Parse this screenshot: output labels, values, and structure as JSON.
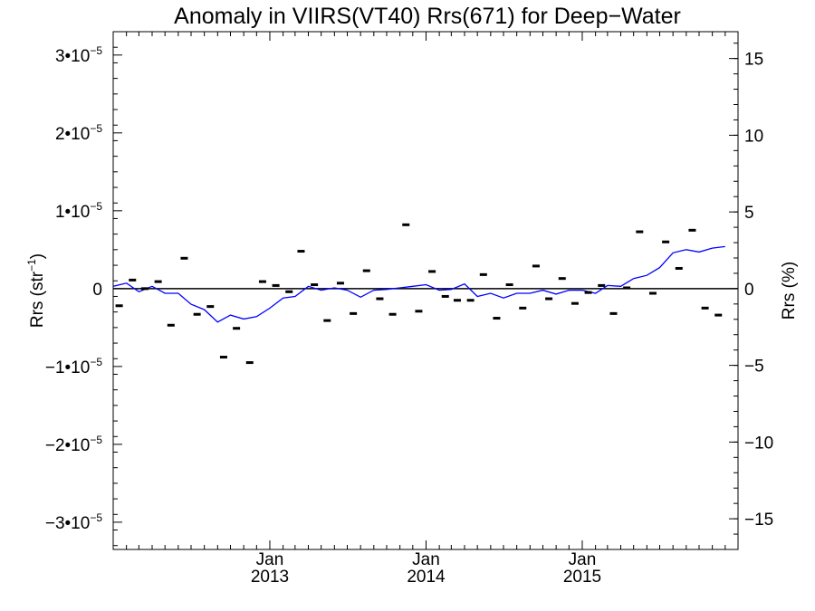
{
  "chart_data": {
    "type": "line",
    "title": "Anomaly in VIIRS(VT40) Rrs(671) for Deep−Water",
    "ylabel": "Rrs (str",
    "ylabel_sup": "−1",
    "ylabel_end": ")",
    "y2label": "Rrs (%)",
    "ylim": [
      -3.35e-05,
      3.3e-05
    ],
    "y2lim": [
      -17.0,
      16.75
    ],
    "y2_scale_per_unit": 5.88e-06,
    "yticks": [
      {
        "value": 3e-05,
        "mantissa": "3•10",
        "exp": "−5"
      },
      {
        "value": 2e-05,
        "mantissa": "2•10",
        "exp": "−5"
      },
      {
        "value": 1e-05,
        "mantissa": "1•10",
        "exp": "−5"
      },
      {
        "value": 0,
        "mantissa": "0",
        "exp": ""
      },
      {
        "value": -1e-05,
        "mantissa": "−1•10",
        "exp": "−5"
      },
      {
        "value": -2e-05,
        "mantissa": "−2•10",
        "exp": "−5"
      },
      {
        "value": -3e-05,
        "mantissa": "−3•10",
        "exp": "−5"
      }
    ],
    "y2ticks": [
      {
        "value": 15,
        "label": "15"
      },
      {
        "value": 10,
        "label": "10"
      },
      {
        "value": 5,
        "label": "5"
      },
      {
        "value": 0,
        "label": "0"
      },
      {
        "value": -5,
        "label": "−5"
      },
      {
        "value": -10,
        "label": "−10"
      },
      {
        "value": -15,
        "label": "−15"
      }
    ],
    "xlim": [
      "2012-01-01",
      "2015-12-31"
    ],
    "xticks": [
      {
        "date": "2013-01-01",
        "month": "Jan",
        "year": "2013"
      },
      {
        "date": "2014-01-01",
        "month": "Jan",
        "year": "2014"
      },
      {
        "date": "2015-01-01",
        "month": "Jan",
        "year": "2015"
      }
    ],
    "zero_line": true,
    "series": [
      {
        "style": "line",
        "color": "#0000ff",
        "x": [
          "2012-01-01",
          "2012-02-01",
          "2012-03-01",
          "2012-04-01",
          "2012-05-01",
          "2012-06-01",
          "2012-07-01",
          "2012-08-01",
          "2012-09-01",
          "2012-10-01",
          "2012-11-01",
          "2012-12-01",
          "2013-01-01",
          "2013-02-01",
          "2013-03-01",
          "2013-04-01",
          "2013-05-01",
          "2013-06-01",
          "2013-07-01",
          "2013-08-01",
          "2013-09-01",
          "2013-10-01",
          "2013-11-01",
          "2013-12-01",
          "2014-01-01",
          "2014-02-01",
          "2014-03-01",
          "2014-04-01",
          "2014-05-01",
          "2014-06-01",
          "2014-07-01",
          "2014-08-01",
          "2014-09-01",
          "2014-10-01",
          "2014-11-01",
          "2014-12-01",
          "2015-01-01",
          "2015-02-01",
          "2015-03-01",
          "2015-04-01",
          "2015-05-01",
          "2015-06-01",
          "2015-07-01",
          "2015-08-01",
          "2015-09-01",
          "2015-10-01",
          "2015-11-01",
          "2015-12-01"
        ],
        "y": [
          3e-07,
          7e-07,
          -4e-07,
          3e-07,
          -6e-07,
          -6e-07,
          -2e-06,
          -2.7e-06,
          -4.3e-06,
          -3.4e-06,
          -3.9e-06,
          -3.6e-06,
          -2.5e-06,
          -1.2e-06,
          -1e-06,
          3e-07,
          -2e-07,
          1e-07,
          -2e-07,
          -1.1e-06,
          -2e-07,
          -1e-07,
          1e-07,
          3e-07,
          5e-07,
          -2e-07,
          -1e-07,
          6e-07,
          -1e-06,
          -6e-07,
          -1.2e-06,
          -6e-07,
          -6e-07,
          -2e-07,
          -7e-07,
          -2e-07,
          -2e-07,
          -6e-07,
          4e-07,
          3e-07,
          1.3e-06,
          1.7e-06,
          2.7e-06,
          4.6e-06,
          5e-06,
          4.7e-06,
          5.2e-06,
          5.4e-06
        ]
      },
      {
        "style": "marker",
        "color": "#000000",
        "x": [
          "2012-01-15",
          "2012-02-15",
          "2012-03-15",
          "2012-04-15",
          "2012-05-15",
          "2012-06-15",
          "2012-07-15",
          "2012-08-15",
          "2012-09-15",
          "2012-10-15",
          "2012-11-15",
          "2012-12-15",
          "2013-01-15",
          "2013-02-15",
          "2013-03-15",
          "2013-04-15",
          "2013-05-15",
          "2013-06-15",
          "2013-07-15",
          "2013-08-15",
          "2013-09-15",
          "2013-10-15",
          "2013-11-15",
          "2013-12-15",
          "2014-01-15",
          "2014-02-15",
          "2014-03-15",
          "2014-04-15",
          "2014-05-15",
          "2014-06-15",
          "2014-07-15",
          "2014-08-15",
          "2014-09-15",
          "2014-10-15",
          "2014-11-15",
          "2014-12-15",
          "2015-01-15",
          "2015-02-15",
          "2015-03-15",
          "2015-04-15",
          "2015-05-15",
          "2015-06-15",
          "2015-07-15",
          "2015-08-15",
          "2015-09-15",
          "2015-10-15",
          "2015-11-15"
        ],
        "y": [
          -2.2e-06,
          1.1e-06,
          0.0,
          9e-07,
          -4.7e-06,
          3.9e-06,
          -3.3e-06,
          -2.3e-06,
          -8.8e-06,
          -5.1e-06,
          -9.5e-06,
          9e-07,
          4e-07,
          -4e-07,
          4.8e-06,
          5e-07,
          -4.1e-06,
          7e-07,
          -3.2e-06,
          2.3e-06,
          -1.3e-06,
          -3.3e-06,
          8.2e-06,
          -2.9e-06,
          2.2e-06,
          -1e-06,
          -1.5e-06,
          -1.5e-06,
          1.8e-06,
          -3.8e-06,
          5e-07,
          -2.5e-06,
          2.9e-06,
          -1.3e-06,
          1.3e-06,
          -1.9e-06,
          -5e-07,
          4e-07,
          -3.2e-06,
          1e-07,
          7.3e-06,
          -6e-07,
          6e-06,
          2.6e-06,
          7.5e-06,
          -2.5e-06,
          -3.4e-06
        ]
      }
    ]
  }
}
